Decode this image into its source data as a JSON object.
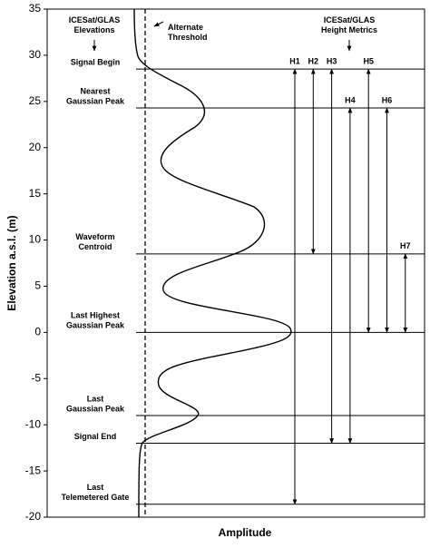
{
  "chart_data": {
    "type": "waveform-diagram",
    "ylabel": "Elevation a.s.l. (m)",
    "xlabel": "Amplitude",
    "ylim": [
      -20,
      35
    ],
    "yticks": [
      -20,
      -15,
      -10,
      -5,
      0,
      5,
      10,
      15,
      20,
      25,
      30,
      35
    ],
    "left_title": [
      "ICESat/GLAS",
      "Elevations"
    ],
    "right_title": [
      "ICESat/GLAS",
      "Height Metrics"
    ],
    "threshold_label": [
      "Alternate",
      "Threshold"
    ],
    "levels": [
      {
        "name": [
          "Signal Begin"
        ],
        "value": 28.5
      },
      {
        "name": [
          "Nearest",
          "Gaussian Peak"
        ],
        "value": 24.3
      },
      {
        "name": [
          "Waveform",
          "Centroid"
        ],
        "value": 8.5
      },
      {
        "name": [
          "Last Highest",
          "Gaussian Peak"
        ],
        "value": 0
      },
      {
        "name": [
          "Last",
          "Gaussian Peak"
        ],
        "value": -9
      },
      {
        "name": [
          "Signal End"
        ],
        "value": -12
      },
      {
        "name": [
          "Last",
          "Telemetered Gate"
        ],
        "value": -18.6
      }
    ],
    "metrics": [
      {
        "name": "H1",
        "from": 28.5,
        "to": -18.6
      },
      {
        "name": "H2",
        "from": 28.5,
        "to": 8.5
      },
      {
        "name": "H3",
        "from": 28.5,
        "to": -12
      },
      {
        "name": "H4",
        "from": 24.3,
        "to": -12
      },
      {
        "name": "H5",
        "from": 28.5,
        "to": 0
      },
      {
        "name": "H6",
        "from": 24.3,
        "to": 0
      },
      {
        "name": "H7",
        "from": 8.5,
        "to": 0
      }
    ]
  }
}
